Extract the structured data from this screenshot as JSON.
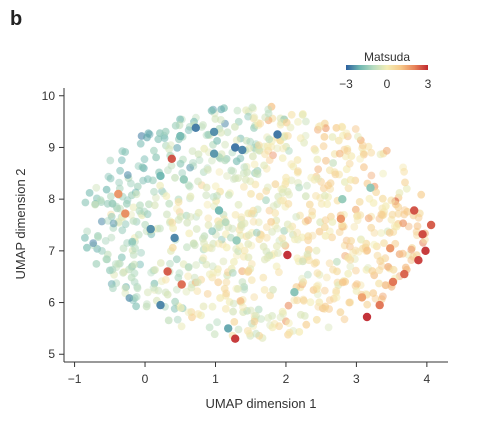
{
  "panel_label": "b",
  "chart_data": {
    "type": "scatter",
    "title": "",
    "xlabel": "UMAP dimension 1",
    "ylabel": "UMAP dimension 2",
    "xlim": [
      -1.15,
      4.3
    ],
    "ylim": [
      4.85,
      10.15
    ],
    "xticks": [
      -1,
      0,
      1,
      2,
      3,
      4
    ],
    "xtick_labels": [
      "−1",
      "0",
      "1",
      "2",
      "3",
      "4"
    ],
    "yticks": [
      5,
      6,
      7,
      8,
      9,
      10
    ],
    "ytick_labels": [
      "5",
      "6",
      "7",
      "8",
      "9",
      "10"
    ],
    "grid": false,
    "colorbar": {
      "title": "Matsuda",
      "min": -3,
      "max": 3,
      "tick_values": [
        -3,
        0,
        3
      ],
      "tick_labels": [
        "−3",
        "0",
        "3"
      ],
      "colors": [
        "#2c5f9e",
        "#6fb7b1",
        "#b7dcc0",
        "#f4edb5",
        "#f6c98a",
        "#e8845a",
        "#c0282f"
      ],
      "legend_position": "top-right"
    },
    "point_count_note": "approximately 1000 points; colour = Matsuda score",
    "highlighted_points": [
      {
        "x": 0.72,
        "y": 9.38,
        "c": -2.7
      },
      {
        "x": 0.98,
        "y": 9.3,
        "c": -2.5
      },
      {
        "x": 0.5,
        "y": 9.22,
        "c": -1.9
      },
      {
        "x": 1.28,
        "y": 9.0,
        "c": -2.8
      },
      {
        "x": 1.38,
        "y": 8.95,
        "c": -2.6
      },
      {
        "x": 0.98,
        "y": 8.88,
        "c": -2.4
      },
      {
        "x": 1.88,
        "y": 9.25,
        "c": -2.8
      },
      {
        "x": 0.55,
        "y": 8.38,
        "c": -1.5
      },
      {
        "x": 0.22,
        "y": 8.45,
        "c": -2.0
      },
      {
        "x": 1.05,
        "y": 7.78,
        "c": -2.0
      },
      {
        "x": 0.08,
        "y": 7.42,
        "c": -2.5
      },
      {
        "x": 0.42,
        "y": 7.25,
        "c": -2.6
      },
      {
        "x": 0.22,
        "y": 5.95,
        "c": -2.6
      },
      {
        "x": 1.3,
        "y": 7.2,
        "c": -1.5
      },
      {
        "x": 1.18,
        "y": 5.5,
        "c": -2.2
      },
      {
        "x": 2.12,
        "y": 6.2,
        "c": -1.7
      },
      {
        "x": 0.38,
        "y": 8.78,
        "c": 2.6
      },
      {
        "x": -0.38,
        "y": 8.1,
        "c": 1.8
      },
      {
        "x": -0.28,
        "y": 7.72,
        "c": 1.9
      },
      {
        "x": 0.32,
        "y": 6.6,
        "c": 2.5
      },
      {
        "x": 0.52,
        "y": 6.35,
        "c": 2.3
      },
      {
        "x": 1.28,
        "y": 5.3,
        "c": 2.9
      },
      {
        "x": 2.02,
        "y": 6.92,
        "c": 3.0
      },
      {
        "x": 3.15,
        "y": 5.72,
        "c": 3.0
      },
      {
        "x": 3.33,
        "y": 5.95,
        "c": 2.2
      },
      {
        "x": 3.82,
        "y": 7.78,
        "c": 2.6
      },
      {
        "x": 3.94,
        "y": 7.32,
        "c": 2.7
      },
      {
        "x": 4.06,
        "y": 7.5,
        "c": 2.5
      },
      {
        "x": 3.98,
        "y": 7.0,
        "c": 2.9
      },
      {
        "x": 3.88,
        "y": 6.82,
        "c": 2.8
      },
      {
        "x": 3.68,
        "y": 6.55,
        "c": 2.4
      },
      {
        "x": 3.52,
        "y": 6.4,
        "c": 2.2
      },
      {
        "x": 3.48,
        "y": 7.05,
        "c": 1.8
      },
      {
        "x": 2.78,
        "y": 7.62,
        "c": 1.8
      },
      {
        "x": 2.8,
        "y": 8.0,
        "c": -1.5
      },
      {
        "x": 3.2,
        "y": 8.22,
        "c": -1.6
      },
      {
        "x": 3.08,
        "y": 6.1,
        "c": 1.6
      }
    ]
  }
}
